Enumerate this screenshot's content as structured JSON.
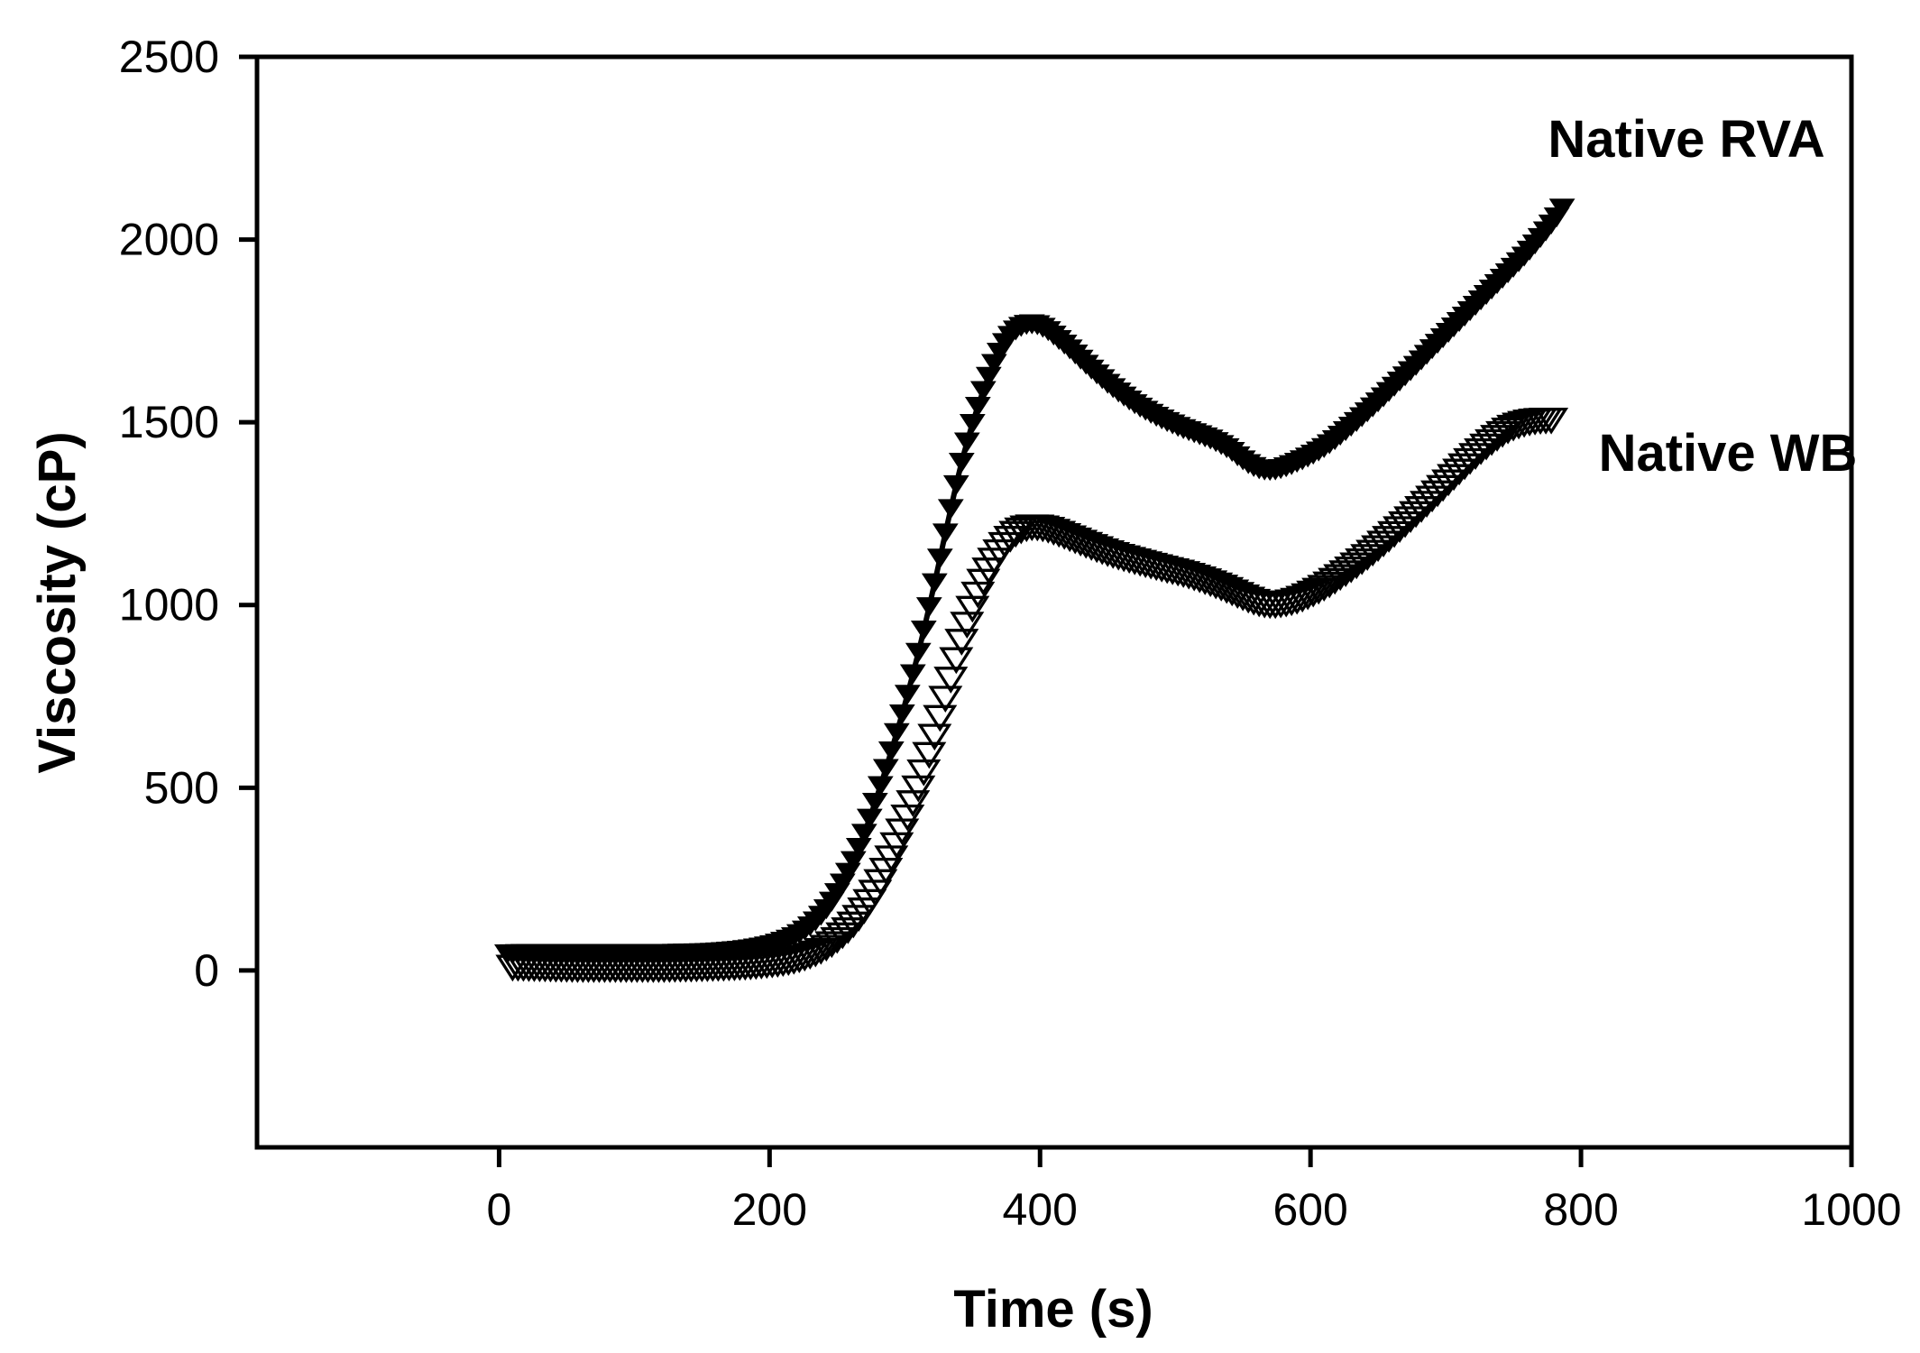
{
  "figure": {
    "background_color": "#ffffff",
    "axis_color": "#000000",
    "series_color": "#000000"
  },
  "chart_data": {
    "type": "scatter",
    "title": "",
    "xlabel": "Time (s)",
    "ylabel": "Viscosity (cP)",
    "xlim": [
      -179,
      1000
    ],
    "ylim": [
      -484,
      2500
    ],
    "x_ticks": [
      "0",
      "200",
      "400",
      "600",
      "800",
      "1000"
    ],
    "x_tick_values": [
      0,
      200,
      400,
      600,
      800,
      1000
    ],
    "y_ticks": [
      "0",
      "500",
      "1000",
      "1500",
      "2000",
      "2500"
    ],
    "y_tick_values": [
      0,
      500,
      1000,
      1500,
      2000,
      2500
    ],
    "grid": false,
    "legend_position": "inline-annotations-right",
    "marker_step_s": 4,
    "series": [
      {
        "name": "Native WB",
        "marker": "triangle-down-open",
        "color": "#000000",
        "marker_width": 32,
        "marker_height": 25,
        "points": [
          [
            10,
            8
          ],
          [
            30,
            6
          ],
          [
            60,
            4
          ],
          [
            90,
            4
          ],
          [
            120,
            4
          ],
          [
            150,
            6
          ],
          [
            180,
            10
          ],
          [
            200,
            16
          ],
          [
            215,
            24
          ],
          [
            228,
            38
          ],
          [
            240,
            58
          ],
          [
            252,
            90
          ],
          [
            264,
            135
          ],
          [
            276,
            200
          ],
          [
            288,
            290
          ],
          [
            300,
            400
          ],
          [
            312,
            520
          ],
          [
            322,
            640
          ],
          [
            332,
            770
          ],
          [
            342,
            900
          ],
          [
            352,
            1010
          ],
          [
            362,
            1095
          ],
          [
            372,
            1155
          ],
          [
            382,
            1195
          ],
          [
            392,
            1212
          ],
          [
            402,
            1210
          ],
          [
            412,
            1198
          ],
          [
            424,
            1180
          ],
          [
            436,
            1162
          ],
          [
            450,
            1142
          ],
          [
            464,
            1126
          ],
          [
            478,
            1112
          ],
          [
            492,
            1098
          ],
          [
            506,
            1085
          ],
          [
            520,
            1068
          ],
          [
            534,
            1048
          ],
          [
            546,
            1028
          ],
          [
            556,
            1012
          ],
          [
            564,
            1003
          ],
          [
            572,
            1000
          ],
          [
            580,
            1003
          ],
          [
            590,
            1012
          ],
          [
            600,
            1028
          ],
          [
            612,
            1052
          ],
          [
            624,
            1082
          ],
          [
            638,
            1120
          ],
          [
            652,
            1162
          ],
          [
            666,
            1208
          ],
          [
            680,
            1256
          ],
          [
            694,
            1306
          ],
          [
            708,
            1358
          ],
          [
            722,
            1408
          ],
          [
            736,
            1452
          ],
          [
            748,
            1482
          ],
          [
            760,
            1498
          ],
          [
            770,
            1504
          ],
          [
            778,
            1505
          ]
        ]
      },
      {
        "name": "Native RVA",
        "marker": "triangle-down-filled",
        "color": "#000000",
        "marker_width": 26,
        "marker_height": 20,
        "points": [
          [
            6,
            45
          ],
          [
            30,
            46
          ],
          [
            60,
            46
          ],
          [
            90,
            46
          ],
          [
            120,
            46
          ],
          [
            150,
            48
          ],
          [
            170,
            52
          ],
          [
            185,
            58
          ],
          [
            200,
            68
          ],
          [
            212,
            82
          ],
          [
            222,
            100
          ],
          [
            232,
            128
          ],
          [
            242,
            168
          ],
          [
            252,
            225
          ],
          [
            262,
            300
          ],
          [
            272,
            395
          ],
          [
            282,
            505
          ],
          [
            292,
            625
          ],
          [
            302,
            755
          ],
          [
            312,
            900
          ],
          [
            322,
            1060
          ],
          [
            332,
            1230
          ],
          [
            342,
            1390
          ],
          [
            352,
            1520
          ],
          [
            362,
            1625
          ],
          [
            372,
            1705
          ],
          [
            380,
            1745
          ],
          [
            388,
            1765
          ],
          [
            396,
            1768
          ],
          [
            404,
            1755
          ],
          [
            412,
            1732
          ],
          [
            422,
            1700
          ],
          [
            432,
            1665
          ],
          [
            444,
            1625
          ],
          [
            456,
            1588
          ],
          [
            468,
            1555
          ],
          [
            480,
            1528
          ],
          [
            492,
            1505
          ],
          [
            504,
            1485
          ],
          [
            516,
            1468
          ],
          [
            528,
            1450
          ],
          [
            540,
            1425
          ],
          [
            548,
            1402
          ],
          [
            556,
            1382
          ],
          [
            564,
            1370
          ],
          [
            572,
            1368
          ],
          [
            580,
            1375
          ],
          [
            590,
            1390
          ],
          [
            600,
            1408
          ],
          [
            612,
            1435
          ],
          [
            624,
            1470
          ],
          [
            636,
            1508
          ],
          [
            650,
            1555
          ],
          [
            664,
            1605
          ],
          [
            678,
            1655
          ],
          [
            692,
            1708
          ],
          [
            706,
            1760
          ],
          [
            720,
            1812
          ],
          [
            734,
            1864
          ],
          [
            748,
            1916
          ],
          [
            760,
            1962
          ],
          [
            770,
            2005
          ],
          [
            778,
            2042
          ],
          [
            784,
            2072
          ],
          [
            788,
            2100
          ]
        ]
      }
    ],
    "annotations": [
      {
        "text": "Native RVA",
        "t": 878,
        "value": 2270
      },
      {
        "text": "Native WB",
        "t": 908,
        "value": 1415
      }
    ]
  }
}
